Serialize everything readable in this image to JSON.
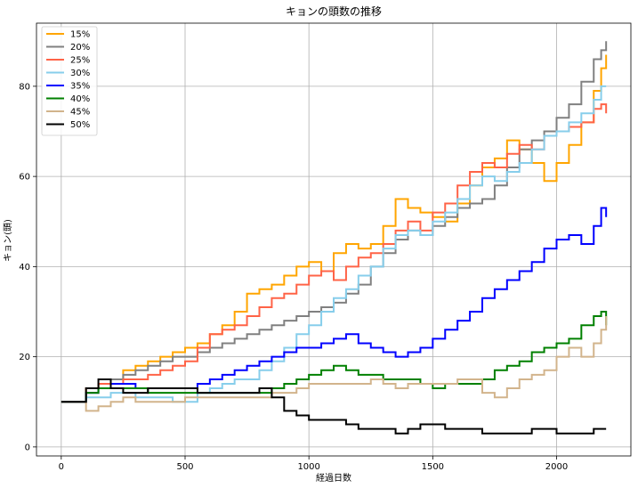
{
  "chart_data": {
    "type": "line",
    "title": "キョンの頭数の推移",
    "xlabel": "経過日数",
    "ylabel": "キョン(頭)",
    "xlim": [
      -100,
      2300
    ],
    "ylim": [
      -2,
      94
    ],
    "xticks": [
      0,
      500,
      1000,
      1500,
      2000
    ],
    "yticks": [
      0,
      20,
      40,
      60,
      80
    ],
    "grid": true,
    "legend_position": "top-left",
    "series": [
      {
        "name": "15%",
        "color": "#FFA500",
        "x": [
          0,
          100,
          150,
          200,
          250,
          300,
          350,
          400,
          450,
          500,
          550,
          600,
          650,
          700,
          750,
          800,
          850,
          900,
          950,
          1000,
          1050,
          1100,
          1150,
          1200,
          1250,
          1300,
          1350,
          1400,
          1450,
          1500,
          1550,
          1600,
          1650,
          1700,
          1750,
          1800,
          1850,
          1900,
          1950,
          2000,
          2050,
          2100,
          2150,
          2180,
          2200
        ],
        "y": [
          10,
          13,
          14,
          15,
          17,
          18,
          19,
          20,
          21,
          22,
          23,
          25,
          27,
          30,
          34,
          35,
          36,
          38,
          40,
          41,
          39,
          43,
          45,
          44,
          45,
          49,
          55,
          53,
          52,
          51,
          50,
          54,
          58,
          62,
          64,
          68,
          66,
          63,
          59,
          63,
          67,
          72,
          79,
          84,
          87
        ]
      },
      {
        "name": "20%",
        "color": "#808080",
        "x": [
          0,
          100,
          150,
          200,
          250,
          300,
          350,
          400,
          450,
          500,
          550,
          600,
          650,
          700,
          750,
          800,
          850,
          900,
          950,
          1000,
          1050,
          1100,
          1150,
          1200,
          1250,
          1300,
          1350,
          1400,
          1450,
          1500,
          1550,
          1600,
          1650,
          1700,
          1750,
          1800,
          1850,
          1900,
          1950,
          2000,
          2050,
          2100,
          2150,
          2180,
          2200
        ],
        "y": [
          10,
          12,
          14,
          15,
          16,
          17,
          18,
          19,
          20,
          20,
          21,
          22,
          23,
          24,
          25,
          26,
          27,
          28,
          29,
          30,
          31,
          32,
          34,
          36,
          40,
          43,
          46,
          48,
          47,
          49,
          51,
          53,
          54,
          55,
          58,
          62,
          66,
          68,
          70,
          73,
          76,
          81,
          86,
          88,
          90
        ]
      },
      {
        "name": "25%",
        "color": "#FF6347",
        "x": [
          0,
          100,
          150,
          200,
          250,
          300,
          350,
          400,
          450,
          500,
          550,
          600,
          650,
          700,
          750,
          800,
          850,
          900,
          950,
          1000,
          1050,
          1100,
          1150,
          1200,
          1250,
          1300,
          1350,
          1400,
          1450,
          1500,
          1550,
          1600,
          1650,
          1700,
          1750,
          1800,
          1850,
          1900,
          1950,
          2000,
          2050,
          2100,
          2150,
          2180,
          2200
        ],
        "y": [
          10,
          13,
          14,
          14,
          15,
          15,
          16,
          17,
          18,
          19,
          22,
          25,
          26,
          27,
          29,
          31,
          33,
          34,
          36,
          38,
          39,
          37,
          40,
          42,
          43,
          45,
          48,
          50,
          48,
          52,
          54,
          58,
          61,
          63,
          62,
          65,
          67,
          66,
          69,
          70,
          71,
          72,
          75,
          76,
          74
        ]
      },
      {
        "name": "30%",
        "color": "#87CEEB",
        "x": [
          0,
          100,
          150,
          200,
          250,
          300,
          350,
          400,
          450,
          500,
          550,
          600,
          650,
          700,
          750,
          800,
          850,
          900,
          950,
          1000,
          1050,
          1100,
          1150,
          1200,
          1250,
          1300,
          1350,
          1400,
          1450,
          1500,
          1550,
          1600,
          1650,
          1700,
          1750,
          1800,
          1850,
          1900,
          1950,
          2000,
          2050,
          2100,
          2150,
          2180,
          2200
        ],
        "y": [
          10,
          11,
          11,
          12,
          12,
          11,
          11,
          11,
          10,
          10,
          12,
          13,
          14,
          15,
          15,
          17,
          19,
          22,
          25,
          27,
          30,
          33,
          35,
          38,
          40,
          44,
          47,
          48,
          47,
          50,
          52,
          55,
          58,
          60,
          59,
          61,
          63,
          66,
          69,
          70,
          72,
          74,
          77,
          80,
          80
        ]
      },
      {
        "name": "35%",
        "color": "#0000FF",
        "x": [
          0,
          100,
          150,
          200,
          250,
          300,
          350,
          400,
          450,
          500,
          550,
          600,
          650,
          700,
          750,
          800,
          850,
          900,
          950,
          1000,
          1050,
          1100,
          1150,
          1200,
          1250,
          1300,
          1350,
          1400,
          1450,
          1500,
          1550,
          1600,
          1650,
          1700,
          1750,
          1800,
          1850,
          1900,
          1950,
          2000,
          2050,
          2100,
          2150,
          2180,
          2200
        ],
        "y": [
          10,
          12,
          13,
          14,
          14,
          13,
          13,
          13,
          13,
          13,
          14,
          15,
          16,
          17,
          18,
          19,
          20,
          21,
          22,
          22,
          23,
          24,
          25,
          23,
          22,
          21,
          20,
          21,
          22,
          24,
          26,
          28,
          30,
          33,
          35,
          37,
          39,
          41,
          44,
          46,
          47,
          45,
          49,
          53,
          51
        ]
      },
      {
        "name": "40%",
        "color": "#008000",
        "x": [
          0,
          100,
          150,
          200,
          250,
          300,
          350,
          400,
          450,
          500,
          550,
          600,
          650,
          700,
          750,
          800,
          850,
          900,
          950,
          1000,
          1050,
          1100,
          1150,
          1200,
          1250,
          1300,
          1350,
          1400,
          1450,
          1500,
          1550,
          1600,
          1650,
          1700,
          1750,
          1800,
          1850,
          1900,
          1950,
          2000,
          2050,
          2100,
          2150,
          2180,
          2200
        ],
        "y": [
          10,
          12,
          13,
          13,
          13,
          13,
          12,
          12,
          12,
          12,
          12,
          12,
          12,
          12,
          12,
          12,
          13,
          14,
          15,
          16,
          17,
          18,
          17,
          16,
          16,
          15,
          15,
          15,
          14,
          13,
          14,
          14,
          14,
          15,
          17,
          18,
          19,
          21,
          22,
          23,
          24,
          27,
          29,
          30,
          27
        ]
      },
      {
        "name": "45%",
        "color": "#D2B48C",
        "x": [
          0,
          100,
          150,
          200,
          250,
          300,
          350,
          400,
          450,
          500,
          550,
          600,
          650,
          700,
          750,
          800,
          850,
          900,
          950,
          1000,
          1050,
          1100,
          1150,
          1200,
          1250,
          1300,
          1350,
          1400,
          1450,
          1500,
          1550,
          1600,
          1650,
          1700,
          1750,
          1800,
          1850,
          1900,
          1950,
          2000,
          2050,
          2100,
          2150,
          2180,
          2200
        ],
        "y": [
          10,
          8,
          9,
          10,
          11,
          10,
          10,
          10,
          10,
          11,
          11,
          11,
          11,
          11,
          11,
          11,
          12,
          12,
          13,
          14,
          14,
          14,
          14,
          14,
          15,
          14,
          13,
          14,
          14,
          14,
          14,
          15,
          15,
          12,
          11,
          13,
          15,
          16,
          17,
          20,
          22,
          20,
          23,
          26,
          29
        ]
      },
      {
        "name": "50%",
        "color": "#000000",
        "x": [
          0,
          100,
          150,
          200,
          250,
          300,
          350,
          400,
          450,
          500,
          550,
          600,
          650,
          700,
          750,
          800,
          850,
          900,
          950,
          1000,
          1050,
          1100,
          1150,
          1200,
          1250,
          1300,
          1350,
          1400,
          1450,
          1500,
          1550,
          1600,
          1650,
          1700,
          1750,
          1800,
          1850,
          1900,
          1950,
          2000,
          2050,
          2100,
          2150,
          2180,
          2200
        ],
        "y": [
          10,
          13,
          15,
          13,
          12,
          12,
          13,
          13,
          13,
          13,
          12,
          12,
          12,
          12,
          12,
          13,
          11,
          8,
          7,
          6,
          6,
          6,
          5,
          4,
          4,
          4,
          3,
          4,
          5,
          5,
          4,
          4,
          4,
          3,
          3,
          3,
          3,
          4,
          4,
          3,
          3,
          3,
          4,
          4,
          4
        ]
      }
    ]
  }
}
